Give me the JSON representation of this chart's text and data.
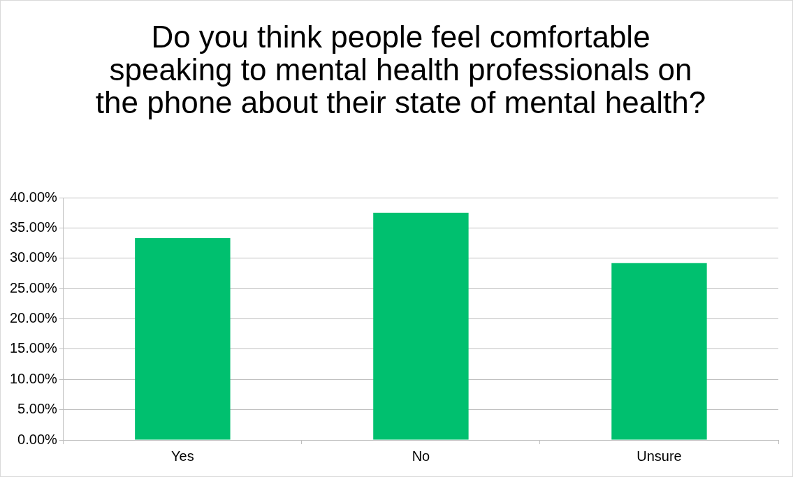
{
  "chart_data": {
    "type": "bar",
    "title": "Do you think people feel comfortable speaking to mental health professionals on the phone about their state of mental health?",
    "categories": [
      "Yes",
      "No",
      "Unsure"
    ],
    "values": [
      33.3,
      37.5,
      29.2
    ],
    "color": "#00c06f",
    "ylim": [
      0,
      40
    ],
    "yticks": [
      {
        "value": 0,
        "label": "0.00%"
      },
      {
        "value": 5,
        "label": "5.00%"
      },
      {
        "value": 10,
        "label": "10.00%"
      },
      {
        "value": 15,
        "label": "15.00%"
      },
      {
        "value": 20,
        "label": "20.00%"
      },
      {
        "value": 25,
        "label": "25.00%"
      },
      {
        "value": 30,
        "label": "30.00%"
      },
      {
        "value": 35,
        "label": "35.00%"
      },
      {
        "value": 40,
        "label": "40.00%"
      }
    ],
    "grid": "y",
    "legend": false
  }
}
